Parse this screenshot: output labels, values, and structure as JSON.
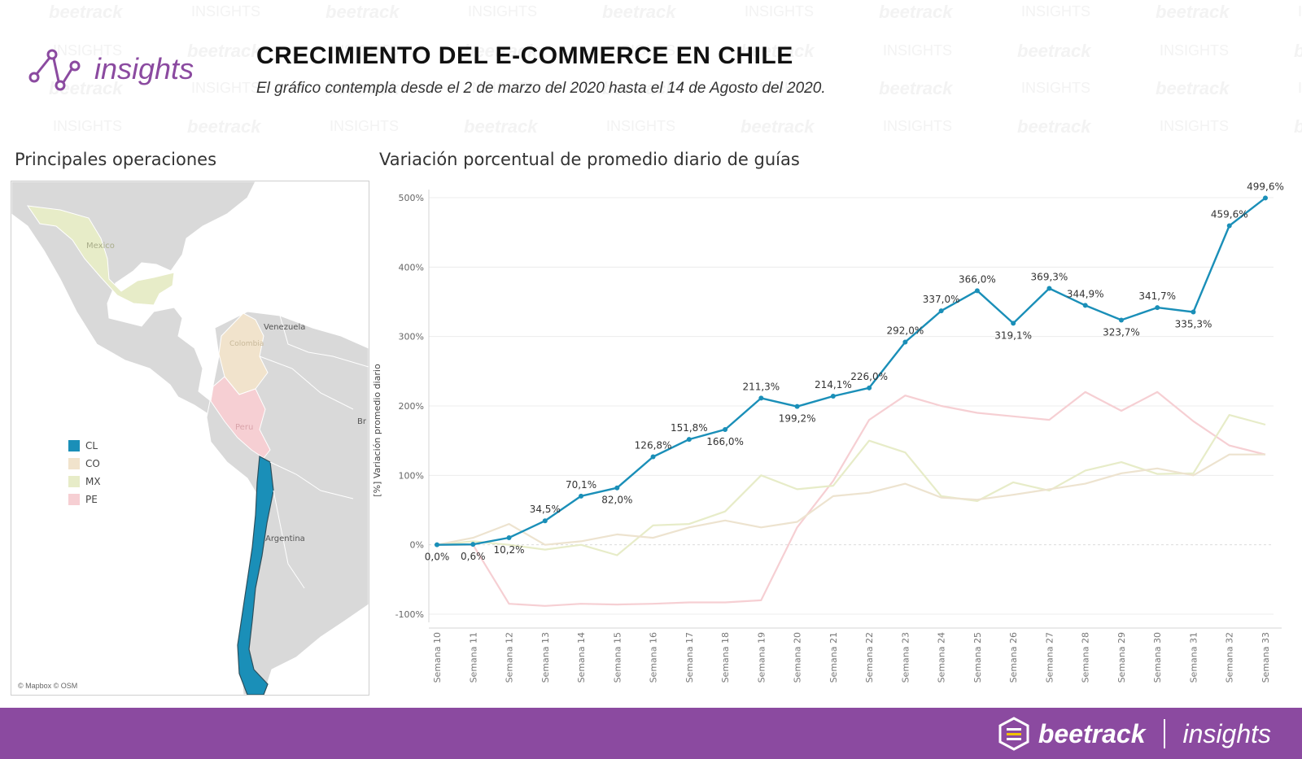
{
  "header": {
    "title": "CRECIMIENTO DEL E-COMMERCE EN CHILE",
    "subtitle": "El gráfico contempla desde el 2 de marzo del 2020 hasta el 14 de Agosto del 2020.",
    "logo_text": "insights"
  },
  "watermark": {
    "brand": "beetrack",
    "word": "INSIGHTS"
  },
  "map": {
    "title": "Principales operaciones",
    "credit": "© Mapbox © OSM",
    "labels": {
      "mexico": "Mexico",
      "venezuela": "Venezuela",
      "colombia": "Colombia",
      "peru": "Peru",
      "brazil": "Br",
      "argentina": "Argentina"
    },
    "legend": [
      {
        "code": "CL",
        "color": "#1a8fb8"
      },
      {
        "code": "CO",
        "color": "#f1e3cc"
      },
      {
        "code": "MX",
        "color": "#e7ecc8"
      },
      {
        "code": "PE",
        "color": "#f6cfd3"
      }
    ]
  },
  "chart_data": {
    "type": "line",
    "title": "Variación porcentual de promedio diario de guías",
    "ylabel": "[%] Variación promedio diario",
    "xlabel": "",
    "ylim": [
      -100,
      500
    ],
    "yticks": [
      -100,
      0,
      100,
      200,
      300,
      400,
      500
    ],
    "ytick_labels": [
      "-100%",
      "0%",
      "100%",
      "200%",
      "300%",
      "400%",
      "500%"
    ],
    "grid": true,
    "categories": [
      "Semana 10",
      "Semana 11",
      "Semana 12",
      "Semana 13",
      "Semana 14",
      "Semana 15",
      "Semana 16",
      "Semana 17",
      "Semana 18",
      "Semana 19",
      "Semana 20",
      "Semana 21",
      "Semana 22",
      "Semana 23",
      "Semana 24",
      "Semana 25",
      "Semana 26",
      "Semana 27",
      "Semana 28",
      "Semana 29",
      "Semana 30",
      "Semana 31",
      "Semana 32",
      "Semana 33"
    ],
    "series": [
      {
        "name": "CL",
        "color": "#1a8fb8",
        "values": [
          0.0,
          0.6,
          10.2,
          34.5,
          70.1,
          82.0,
          126.8,
          151.8,
          166.0,
          211.3,
          199.2,
          214.1,
          226.0,
          292.0,
          337.0,
          366.0,
          319.1,
          369.3,
          344.9,
          323.7,
          341.7,
          335.3,
          459.6,
          499.6
        ],
        "labels": [
          "0,0%",
          "0,6%",
          "10,2%",
          "34,5%",
          "70,1%",
          "82,0%",
          "126,8%",
          "151,8%",
          "166,0%",
          "211,3%",
          "199,2%",
          "214,1%",
          "226,0%",
          "292,0%",
          "337,0%",
          "366,0%",
          "319,1%",
          "369,3%",
          "344,9%",
          "323,7%",
          "341,7%",
          "335,3%",
          "459,6%",
          "499,6%"
        ],
        "label_pos": [
          "below",
          "below",
          "below",
          "above",
          "above",
          "below",
          "above",
          "above",
          "below",
          "above",
          "below",
          "above",
          "above",
          "above",
          "above",
          "above",
          "below",
          "above",
          "above",
          "below",
          "above",
          "below",
          "above",
          "above"
        ]
      },
      {
        "name": "CO",
        "color": "#ede3cf",
        "values": [
          0,
          10,
          30,
          0,
          5,
          15,
          10,
          25,
          35,
          25,
          33,
          70,
          75,
          88,
          68,
          65,
          72,
          80,
          88,
          103,
          110,
          100,
          130,
          130
        ]
      },
      {
        "name": "MX",
        "color": "#e7ecc8",
        "values": [
          0,
          5,
          0,
          -7,
          0,
          -15,
          28,
          30,
          48,
          100,
          80,
          85,
          150,
          133,
          70,
          63,
          90,
          78,
          107,
          119,
          102,
          103,
          187,
          173
        ]
      },
      {
        "name": "PE",
        "color": "#f6cfd3",
        "values": [
          0,
          0,
          -85,
          -88,
          -85,
          -86,
          -85,
          -83,
          -83,
          -80,
          25,
          92,
          180,
          215,
          200,
          190,
          185,
          180,
          220,
          193,
          220,
          178,
          143,
          130
        ]
      }
    ]
  },
  "footer": {
    "brand": "beetrack",
    "product": "insights"
  }
}
